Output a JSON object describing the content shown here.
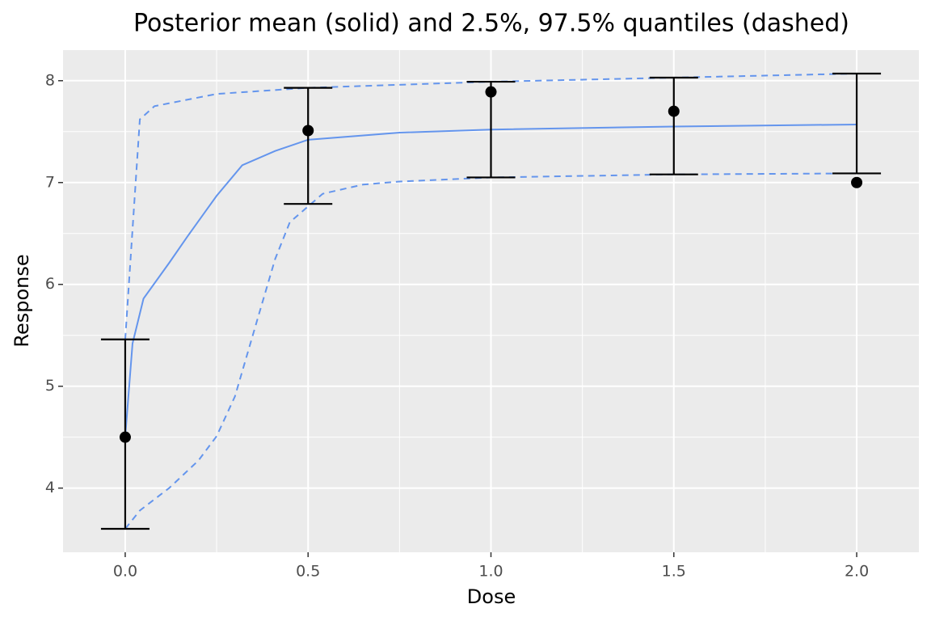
{
  "chart_data": {
    "type": "line",
    "title": "Posterior mean (solid) and 2.5%, 97.5% quantiles (dashed)",
    "x_label": "Dose",
    "y_label": "Response",
    "xlim": [
      -0.17,
      2.17
    ],
    "ylim": [
      3.37,
      8.3
    ],
    "xticks": [
      {
        "value": 0,
        "label": "0.0"
      },
      0.5,
      {
        "value": 1,
        "label": "1.0"
      },
      1.5,
      {
        "value": 2,
        "label": "2.0"
      }
    ],
    "minor_xticks": [
      0.25,
      0.75,
      1.25,
      1.75
    ],
    "yticks": [
      4,
      5,
      6,
      7,
      8
    ],
    "minor_yticks": [
      4.5,
      5.5,
      6.5,
      7.5
    ],
    "grid": true,
    "points": {
      "color": "#000000",
      "x": [
        0,
        0.5,
        1,
        1.5,
        2
      ],
      "values": [
        4.5,
        7.51,
        7.89,
        7.7,
        7.0
      ],
      "lower": [
        3.6,
        6.79,
        7.05,
        7.08,
        7.09
      ],
      "upper": [
        5.46,
        7.93,
        7.99,
        8.03,
        8.07
      ]
    },
    "series": [
      {
        "color": "#6495ed",
        "dash": false,
        "x": [
          0,
          0.02,
          0.05,
          0.12,
          0.17,
          0.25,
          0.32,
          0.41,
          0.5,
          0.75,
          1.0,
          1.5,
          2.0
        ],
        "values": [
          4.5,
          5.42,
          5.86,
          6.21,
          6.47,
          6.87,
          7.17,
          7.31,
          7.42,
          7.49,
          7.52,
          7.55,
          7.57
        ]
      },
      {
        "color": "#6495ed",
        "dash": true,
        "x": [
          0,
          0.04,
          0.08,
          0.25,
          0.5,
          1.0,
          1.5,
          2.0
        ],
        "values": [
          5.46,
          7.62,
          7.75,
          7.87,
          7.93,
          7.99,
          8.03,
          8.07
        ]
      },
      {
        "color": "#6495ed",
        "dash": true,
        "x": [
          0,
          0.04,
          0.12,
          0.2,
          0.25,
          0.3,
          0.365,
          0.41,
          0.45,
          0.54,
          0.65,
          0.75,
          1.0,
          1.5,
          2.0
        ],
        "values": [
          3.6,
          3.78,
          4.0,
          4.27,
          4.51,
          4.9,
          5.7,
          6.25,
          6.61,
          6.89,
          6.98,
          7.01,
          7.05,
          7.08,
          7.09
        ]
      }
    ]
  }
}
